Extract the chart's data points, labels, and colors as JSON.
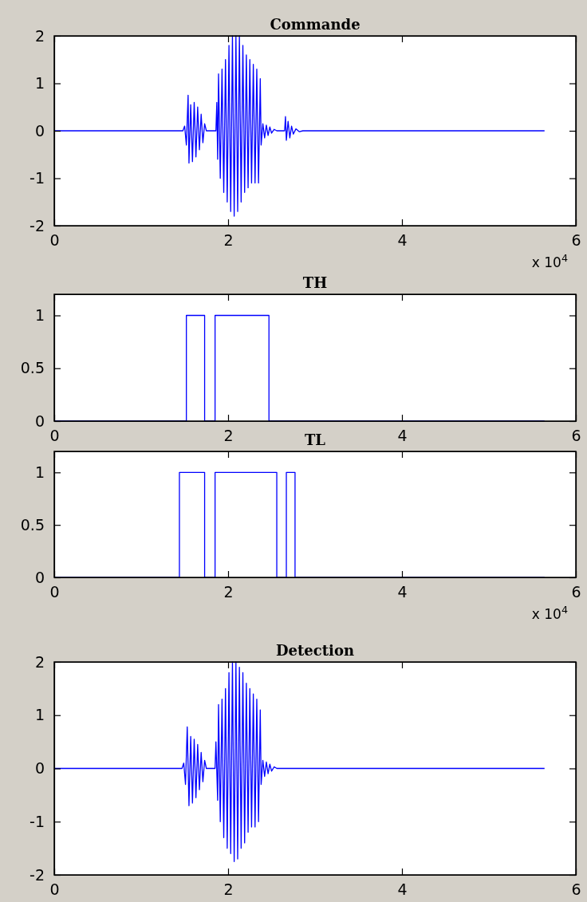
{
  "chart_data": [
    {
      "type": "line",
      "title": "Commande",
      "xlim": [
        0,
        6
      ],
      "xticks": [
        0,
        2,
        4,
        6
      ],
      "ylim": [
        -2,
        2
      ],
      "yticks": [
        -2,
        -1,
        0,
        1,
        2
      ],
      "annotations": [
        "x 10$^{4}$"
      ],
      "series": [
        {
          "color": "#0000ff",
          "x": [
            0,
            1.48,
            1.5,
            1.52,
            1.54,
            1.55,
            1.57,
            1.59,
            1.61,
            1.63,
            1.65,
            1.67,
            1.69,
            1.71,
            1.73,
            1.75,
            1.86,
            1.87,
            1.88,
            1.89,
            1.91,
            1.93,
            1.95,
            1.97,
            1.99,
            2.01,
            2.03,
            2.05,
            2.07,
            2.09,
            2.11,
            2.13,
            2.15,
            2.17,
            2.19,
            2.21,
            2.23,
            2.25,
            2.27,
            2.29,
            2.31,
            2.33,
            2.35,
            2.37,
            2.38,
            2.4,
            2.42,
            2.44,
            2.46,
            2.48,
            2.5,
            2.53,
            2.56,
            2.65,
            2.66,
            2.67,
            2.69,
            2.71,
            2.73,
            2.75,
            2.78,
            2.82,
            2.86,
            5.64
          ],
          "values": [
            0,
            0,
            0.1,
            -0.3,
            0.75,
            -0.68,
            0.55,
            -0.65,
            0.6,
            -0.55,
            0.5,
            -0.4,
            0.35,
            -0.25,
            0.15,
            0,
            0,
            0.6,
            -0.6,
            1.2,
            -1,
            1.3,
            -1.3,
            1.5,
            -1.5,
            1.8,
            -1.7,
            2,
            -1.8,
            2,
            -1.7,
            2,
            -1.5,
            1.8,
            -1.3,
            1.6,
            -1.2,
            1.5,
            -1.1,
            1.4,
            -1.1,
            1.3,
            -1.1,
            1.1,
            -0.3,
            0.15,
            -0.15,
            0.12,
            -0.1,
            0.08,
            -0.05,
            0.03,
            0,
            0,
            0.3,
            -0.2,
            0.2,
            -0.15,
            0.1,
            -0.07,
            0.04,
            -0.02,
            0,
            0
          ]
        }
      ]
    },
    {
      "type": "line",
      "title": "TH",
      "xlim": [
        0,
        6
      ],
      "xticks": [
        0,
        2,
        4,
        6
      ],
      "ylim": [
        0,
        1.2
      ],
      "yticks": [
        0,
        0.5,
        1
      ],
      "series": [
        {
          "color": "#0000ff",
          "x": [
            0,
            1.52,
            1.52,
            1.73,
            1.73,
            1.85,
            1.85,
            2.47,
            2.47,
            5.64
          ],
          "values": [
            0,
            0,
            1,
            1,
            0,
            0,
            1,
            1,
            0,
            0
          ]
        }
      ]
    },
    {
      "type": "line",
      "title": "TL",
      "xlim": [
        0,
        6
      ],
      "xticks": [
        0,
        2,
        4,
        6
      ],
      "ylim": [
        0,
        1.2
      ],
      "yticks": [
        0,
        0.5,
        1
      ],
      "annotations": [
        "x 10$^{4}$"
      ],
      "series": [
        {
          "color": "#0000ff",
          "x": [
            0,
            1.44,
            1.44,
            1.73,
            1.73,
            1.85,
            1.85,
            2.56,
            2.56,
            2.67,
            2.67,
            2.77,
            2.77,
            5.64
          ],
          "values": [
            0,
            0,
            1,
            1,
            0,
            0,
            1,
            1,
            0,
            0,
            1,
            1,
            0,
            0
          ]
        }
      ]
    },
    {
      "type": "line",
      "title": "Detection",
      "xlim": [
        0,
        6
      ],
      "xticks": [
        0,
        2,
        4,
        6
      ],
      "ylim": [
        -2,
        2
      ],
      "yticks": [
        -2,
        -1,
        0,
        1,
        2
      ],
      "series": [
        {
          "color": "#0000ff",
          "x": [
            0,
            1.47,
            1.49,
            1.51,
            1.53,
            1.55,
            1.57,
            1.59,
            1.61,
            1.63,
            1.65,
            1.67,
            1.69,
            1.71,
            1.73,
            1.75,
            1.85,
            1.86,
            1.88,
            1.89,
            1.91,
            1.93,
            1.95,
            1.97,
            1.99,
            2.01,
            2.03,
            2.05,
            2.07,
            2.09,
            2.11,
            2.13,
            2.15,
            2.17,
            2.19,
            2.21,
            2.23,
            2.25,
            2.27,
            2.29,
            2.31,
            2.33,
            2.35,
            2.37,
            2.38,
            2.4,
            2.42,
            2.44,
            2.46,
            2.48,
            2.5,
            2.53,
            2.56,
            5.64
          ],
          "values": [
            0,
            0,
            0.1,
            -0.3,
            0.78,
            -0.7,
            0.6,
            -0.65,
            0.55,
            -0.55,
            0.45,
            -0.4,
            0.3,
            -0.25,
            0.15,
            0,
            0,
            0.5,
            -0.6,
            1.2,
            -1,
            1.3,
            -1.3,
            1.5,
            -1.5,
            1.8,
            -1.6,
            2,
            -1.75,
            2,
            -1.7,
            1.9,
            -1.5,
            1.8,
            -1.4,
            1.6,
            -1.2,
            1.5,
            -1.1,
            1.4,
            -1.1,
            1.3,
            -1,
            1.1,
            -0.3,
            0.15,
            -0.15,
            0.12,
            -0.1,
            0.08,
            -0.05,
            0.03,
            0,
            0
          ]
        }
      ]
    }
  ]
}
